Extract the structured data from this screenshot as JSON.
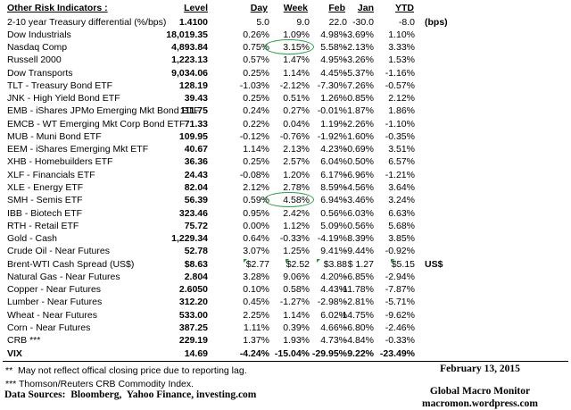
{
  "colors": {
    "circle_green": "#2fa14c",
    "triangle_green": "#169b2f"
  },
  "table": {
    "title": "Other Risk Indicators :",
    "columns": [
      "Level",
      "Day",
      "Week",
      "Feb",
      "Jan",
      "YTD"
    ],
    "rows": [
      {
        "label": "2-10 year Treasury differential (%/bps)",
        "level": "1.4100",
        "day": "5.0",
        "week": "9.0",
        "feb": "22.0",
        "jan": "-30.0",
        "ytd": "-8.0",
        "suffix": "(bps)"
      },
      {
        "label": "Dow Industrials",
        "level": "18,019.35",
        "day": "0.26%",
        "week": "1.09%",
        "feb": "4.98%",
        "jan": "-3.69%",
        "ytd": "1.10%"
      },
      {
        "label": "Nasdaq Comp",
        "level": "4,893.84",
        "day": "0.75%",
        "week": "3.15%",
        "feb": "5.58%",
        "jan": "-2.13%",
        "ytd": "3.33%",
        "week_circled": true
      },
      {
        "label": "Russell 2000",
        "level": "1,223.13",
        "day": "0.57%",
        "week": "1.47%",
        "feb": "4.95%",
        "jan": "-3.26%",
        "ytd": "1.53%"
      },
      {
        "label": "Dow Transports",
        "level": "9,034.06",
        "day": "0.25%",
        "week": "1.14%",
        "feb": "4.45%",
        "jan": "-5.37%",
        "ytd": "-1.16%"
      },
      {
        "label": "TLT - Treasury Bond ETF",
        "level": "128.19",
        "day": "-1.03%",
        "week": "-2.12%",
        "feb": "-7.30%",
        "jan": "7.26%",
        "ytd": "-0.57%"
      },
      {
        "label": "JNK - High Yield Bond ETF",
        "level": "39.43",
        "day": "0.25%",
        "week": "0.51%",
        "feb": "1.26%",
        "jan": "0.85%",
        "ytd": "2.12%"
      },
      {
        "label": "EMB - iShares JPMo Emerging Mkt Bond ETF",
        "level": "111.75",
        "day": "0.24%",
        "week": "0.27%",
        "feb": "-0.01%",
        "jan": "1.87%",
        "ytd": "1.86%"
      },
      {
        "label": "EMCB - WT Emerging Mkt Corp Bond ETF",
        "level": "71.33",
        "day": "0.22%",
        "week": "0.04%",
        "feb": "1.19%",
        "jan": "-2.26%",
        "ytd": "-1.10%"
      },
      {
        "label": "MUB - Muni Bond ETF",
        "level": "109.95",
        "day": "-0.12%",
        "week": "-0.76%",
        "feb": "-1.92%",
        "jan": "1.60%",
        "ytd": "-0.35%"
      },
      {
        "label": "EEM - iShares Emerging Mkt ETF",
        "level": "40.67",
        "day": "1.14%",
        "week": "2.13%",
        "feb": "4.23%",
        "jan": "-0.69%",
        "ytd": "3.51%"
      },
      {
        "label": "XHB - Homebuilders ETF",
        "level": "36.36",
        "day": "0.25%",
        "week": "2.57%",
        "feb": "6.04%",
        "jan": "0.50%",
        "ytd": "6.57%"
      },
      {
        "label": "XLF - Financials ETF",
        "level": "24.43",
        "day": "-0.08%",
        "week": "1.20%",
        "feb": "6.17%",
        "jan": "-6.96%",
        "ytd": "-1.21%"
      },
      {
        "label": "XLE - Energy ETF",
        "level": "82.04",
        "day": "2.12%",
        "week": "2.78%",
        "feb": "8.59%",
        "jan": "-4.56%",
        "ytd": "3.64%"
      },
      {
        "label": "SMH - Semis ETF",
        "level": "56.39",
        "day": "0.59%",
        "week": "4.58%",
        "feb": "6.94%",
        "jan": "-3.46%",
        "ytd": "3.24%",
        "week_circled": true
      },
      {
        "label": "IBB - Biotech ETF",
        "level": "323.46",
        "day": "0.95%",
        "week": "2.42%",
        "feb": "0.56%",
        "jan": "6.03%",
        "ytd": "6.63%"
      },
      {
        "label": "RTH - Retail ETF",
        "level": "75.72",
        "day": "0.00%",
        "week": "1.12%",
        "feb": "5.09%",
        "jan": "0.56%",
        "ytd": "5.68%"
      },
      {
        "label": "Gold - Cash",
        "level": "1,229.34",
        "day": "0.64%",
        "week": "-0.33%",
        "feb": "-4.19%",
        "jan": "8.39%",
        "ytd": "3.85%"
      },
      {
        "label": "Crude Oil - Near Futures",
        "level": "52.78",
        "day": "3.07%",
        "week": "1.25%",
        "feb": "9.41%",
        "jan": "-9.44%",
        "ytd": "-0.92%"
      },
      {
        "label": "Brent-WTI Cash Spread (US$)",
        "level": "$8.63",
        "day": "$2.77",
        "week": "$2.52",
        "feb": "$3.88",
        "jan": "$ 1.27",
        "ytd": "$5.15",
        "suffix": "US$",
        "comment_markers": true
      },
      {
        "label": "Natural Gas - Near Futures",
        "level": "2.804",
        "day": "3.28%",
        "week": "9.06%",
        "feb": "4.20%",
        "jan": "-6.85%",
        "ytd": "-2.94%"
      },
      {
        "label": "Copper - Near Futures",
        "level": "2.6050",
        "day": "0.10%",
        "week": "0.58%",
        "feb": "4.43%",
        "jan": "-11.78%",
        "ytd": "-7.87%"
      },
      {
        "label": "Lumber - Near Futures",
        "level": "312.20",
        "day": "0.45%",
        "week": "-1.27%",
        "feb": "-2.98%",
        "jan": "-2.81%",
        "ytd": "-5.71%"
      },
      {
        "label": "Wheat - Near Futures",
        "level": "533.00",
        "day": "2.25%",
        "week": "1.14%",
        "feb": "6.02%",
        "jan": "-14.75%",
        "ytd": "-9.62%"
      },
      {
        "label": "Corn - Near Futures",
        "level": "387.25",
        "day": "1.11%",
        "week": "0.39%",
        "feb": "4.66%",
        "jan": "-6.80%",
        "ytd": "-2.46%"
      },
      {
        "label": "CRB ***",
        "level": "229.19",
        "day": "1.37%",
        "week": "1.93%",
        "feb": "4.73%",
        "jan": "-4.84%",
        "ytd": "-0.33%"
      },
      {
        "label": "VIX",
        "level": "14.69",
        "day": "-4.24%",
        "week": "-15.04%",
        "feb": "-29.95%",
        "jan": "9.22%",
        "ytd": "-23.49%",
        "bold": true
      }
    ]
  },
  "footer": {
    "note1": "**  May not reflect offical closing price due to reporting lag.",
    "note2": "*** Thomson/Reuters CRB Commodity Index.",
    "sources": "Data Sources:  Bloomberg,  Yahoo Finance, investing.com",
    "date": "February 13, 2015",
    "brand": "Global Macro Monitor",
    "url": "macromon.wordpress.com"
  }
}
